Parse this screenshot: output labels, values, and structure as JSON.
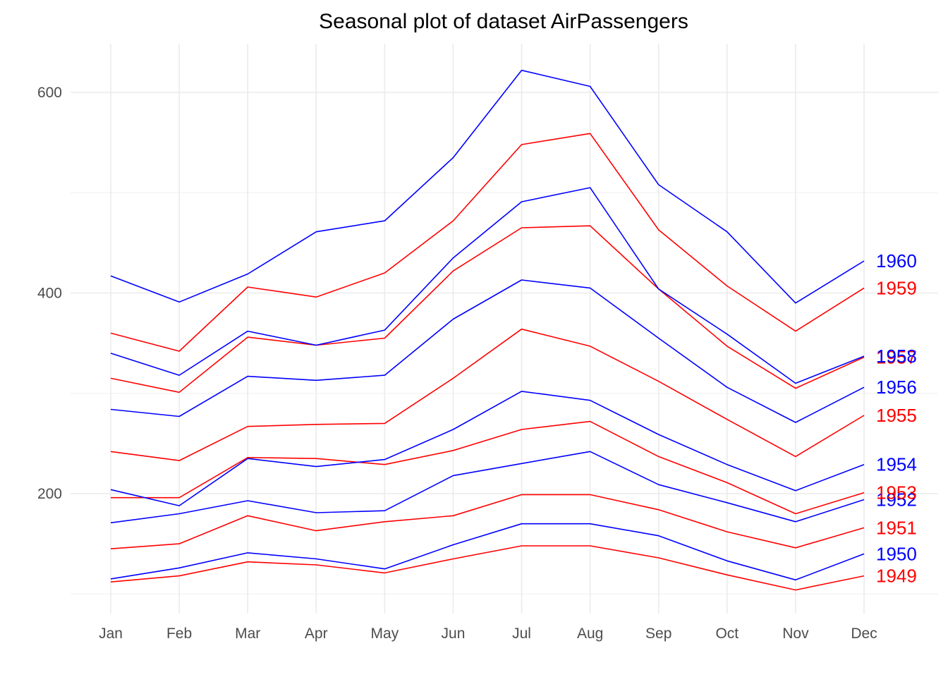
{
  "chart_data": {
    "type": "line",
    "title": "Seasonal plot of dataset AirPassengers",
    "xlabel": "",
    "ylabel": "",
    "categories": [
      "Jan",
      "Feb",
      "Mar",
      "Apr",
      "May",
      "Jun",
      "Jul",
      "Aug",
      "Sep",
      "Oct",
      "Nov",
      "Dec"
    ],
    "ylim": [
      91,
      637
    ],
    "y_ticks": [
      200,
      400,
      600
    ],
    "grid": true,
    "legend": "none (labels at right end of each line)",
    "series": [
      {
        "name": "1949",
        "color": "#ff0000",
        "values": [
          112,
          118,
          132,
          129,
          121,
          135,
          148,
          148,
          136,
          119,
          104,
          118
        ]
      },
      {
        "name": "1950",
        "color": "#0000ff",
        "values": [
          115,
          126,
          141,
          135,
          125,
          149,
          170,
          170,
          158,
          133,
          114,
          140
        ]
      },
      {
        "name": "1951",
        "color": "#ff0000",
        "values": [
          145,
          150,
          178,
          163,
          172,
          178,
          199,
          199,
          184,
          162,
          146,
          166
        ]
      },
      {
        "name": "1952",
        "color": "#0000ff",
        "values": [
          171,
          180,
          193,
          181,
          183,
          218,
          230,
          242,
          209,
          191,
          172,
          194
        ]
      },
      {
        "name": "1953",
        "color": "#ff0000",
        "values": [
          196,
          196,
          236,
          235,
          229,
          243,
          264,
          272,
          237,
          211,
          180,
          201
        ]
      },
      {
        "name": "1954",
        "color": "#0000ff",
        "values": [
          204,
          188,
          235,
          227,
          234,
          264,
          302,
          293,
          259,
          229,
          203,
          229
        ]
      },
      {
        "name": "1955",
        "color": "#ff0000",
        "values": [
          242,
          233,
          267,
          269,
          270,
          315,
          364,
          347,
          312,
          274,
          237,
          278
        ]
      },
      {
        "name": "1956",
        "color": "#0000ff",
        "values": [
          284,
          277,
          317,
          313,
          318,
          374,
          413,
          405,
          355,
          306,
          271,
          306
        ]
      },
      {
        "name": "1957",
        "color": "#ff0000",
        "values": [
          315,
          301,
          356,
          348,
          355,
          422,
          465,
          467,
          404,
          347,
          305,
          336
        ]
      },
      {
        "name": "1958",
        "color": "#0000ff",
        "values": [
          340,
          318,
          362,
          348,
          363,
          435,
          491,
          505,
          404,
          359,
          310,
          337
        ]
      },
      {
        "name": "1959",
        "color": "#ff0000",
        "values": [
          360,
          342,
          406,
          396,
          420,
          472,
          548,
          559,
          463,
          407,
          362,
          405
        ]
      },
      {
        "name": "1960",
        "color": "#0000ff",
        "values": [
          417,
          391,
          419,
          461,
          472,
          535,
          622,
          606,
          508,
          461,
          390,
          432
        ]
      }
    ]
  }
}
